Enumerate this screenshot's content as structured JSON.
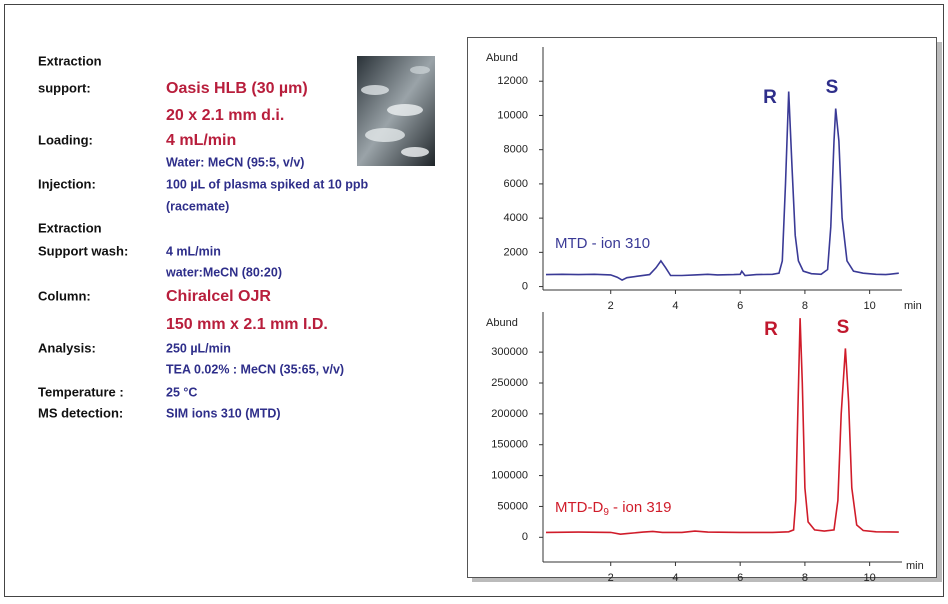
{
  "conditions": [
    {
      "label": "Extraction"
    },
    {
      "label": "support:",
      "text": "Oasis HLB (30 µm)"
    },
    {
      "text": "20 x 2.1 mm d.i."
    },
    {
      "label": "Loading:",
      "text": "4 mL/min"
    },
    {
      "text": "Water: MeCN (95:5, v/v)"
    },
    {
      "label": "Injection:",
      "text": "100 µL of plasma spiked at 10 ppb"
    },
    {
      "text": "(racemate)"
    },
    {
      "label": "Extraction"
    },
    {
      "label": "Support wash:",
      "text": "4 mL/min"
    },
    {
      "text": "water:MeCN (80:20)"
    },
    {
      "label": "Column:",
      "text": "Chiralcel OJR"
    },
    {
      "text": "150 mm x 2.1 mm I.D."
    },
    {
      "label": "Analysis:",
      "text": "250 µL/min"
    },
    {
      "text": "TEA 0.02% : MeCN (35:65, v/v)"
    },
    {
      "label": "Temperature :",
      "text": "25 °C"
    },
    {
      "label": "MS detection:",
      "text": "SIM ions 310 (MTD)"
    }
  ],
  "chart_data": [
    {
      "type": "line",
      "y_label": "Abund",
      "x_label": "min",
      "peak_labels": [
        "R",
        "S"
      ],
      "peak_color": "#2e2e8a",
      "xlim": [
        0,
        11
      ],
      "xticks": [
        2,
        4,
        6,
        8,
        10
      ],
      "ylim": [
        -200,
        14000
      ],
      "yticks": [
        0,
        2000,
        4000,
        6000,
        8000,
        10000,
        12000
      ],
      "series": [
        {
          "label_parts": [
            "MTD - ion 310"
          ],
          "color": "#3a3a96",
          "x": [
            0,
            0.5,
            1,
            1.5,
            2,
            2.2,
            2.35,
            2.5,
            2.8,
            3.2,
            3.4,
            3.55,
            3.7,
            3.85,
            4.2,
            4.6,
            5,
            5.3,
            5.8,
            6,
            6.05,
            6.15,
            6.5,
            7,
            7.2,
            7.3,
            7.4,
            7.5,
            7.6,
            7.7,
            7.8,
            7.95,
            8.2,
            8.5,
            8.7,
            8.8,
            8.9,
            8.95,
            9.05,
            9.15,
            9.3,
            9.5,
            9.8,
            10.2,
            10.5,
            10.8,
            10.9
          ],
          "values": [
            700,
            720,
            700,
            720,
            680,
            550,
            380,
            520,
            600,
            700,
            1100,
            1500,
            1100,
            650,
            650,
            680,
            720,
            680,
            700,
            720,
            900,
            650,
            700,
            720,
            780,
            1500,
            6000,
            11400,
            7000,
            3000,
            1500,
            900,
            750,
            720,
            1000,
            3500,
            8500,
            10400,
            8500,
            4000,
            1500,
            900,
            780,
            720,
            700,
            760,
            780
          ]
        }
      ]
    },
    {
      "type": "line",
      "y_label": "Abund",
      "x_label": "min",
      "peak_labels": [
        "R",
        "S"
      ],
      "peak_color": "#c0182e",
      "xlim": [
        0,
        11
      ],
      "xticks": [
        2,
        4,
        6,
        8,
        10
      ],
      "ylim": [
        -40000,
        365000
      ],
      "yticks": [
        0,
        50000,
        100000,
        150000,
        200000,
        250000,
        300000
      ],
      "series": [
        {
          "label_parts": [
            "MTD-D",
            "9",
            " - ion 319"
          ],
          "color": "#d01c2a",
          "x": [
            0,
            1,
            2,
            2.3,
            2.5,
            3,
            3.3,
            3.6,
            4.2,
            4.6,
            5,
            6,
            7,
            7.5,
            7.65,
            7.72,
            7.78,
            7.85,
            7.92,
            8,
            8.1,
            8.3,
            8.6,
            8.9,
            9.02,
            9.12,
            9.25,
            9.35,
            9.45,
            9.6,
            9.8,
            10.2,
            10.9
          ],
          "values": [
            8000,
            8500,
            8000,
            5000,
            6000,
            8500,
            9500,
            8000,
            8000,
            10000,
            8500,
            8000,
            8000,
            9000,
            12000,
            60000,
            200000,
            355000,
            250000,
            80000,
            25000,
            12000,
            10000,
            12000,
            60000,
            200000,
            306000,
            220000,
            80000,
            20000,
            11000,
            9000,
            8500
          ]
        }
      ]
    }
  ]
}
